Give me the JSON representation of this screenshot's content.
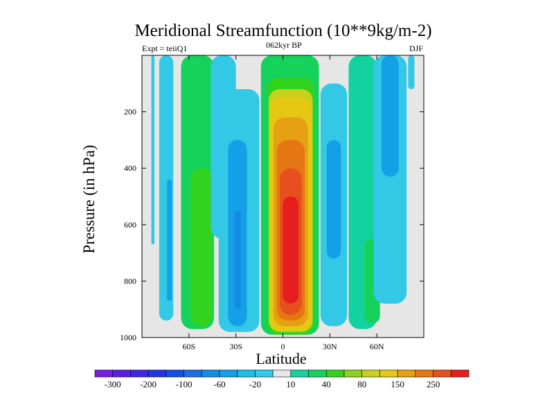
{
  "chart_data": {
    "type": "heatmap",
    "title": "Meridional Streamfunction (10**9kg/m-2)",
    "left_label": "Expt = teiiQ1",
    "center_label": "062kyr BP",
    "right_label": "DJF",
    "xlabel": "Latitude",
    "ylabel": "Pressure (in hPa)",
    "xlim": [
      -90,
      90
    ],
    "ylim": [
      0,
      1000
    ],
    "y_reversed": true,
    "grid": false,
    "legend_position": "bottom",
    "x_ticks": [
      {
        "value": -60,
        "label": "60S"
      },
      {
        "value": -30,
        "label": "30S"
      },
      {
        "value": 0,
        "label": "0"
      },
      {
        "value": 30,
        "label": "30N"
      },
      {
        "value": 60,
        "label": "60N"
      }
    ],
    "y_ticks": [
      {
        "value": 200,
        "label": "200"
      },
      {
        "value": 400,
        "label": "400"
      },
      {
        "value": 600,
        "label": "600"
      },
      {
        "value": 800,
        "label": "800"
      },
      {
        "value": 1000,
        "label": "1000"
      }
    ],
    "colorbar": {
      "levels": [
        -300,
        -250,
        -200,
        -150,
        -100,
        -80,
        -60,
        -40,
        -20,
        -10,
        10,
        20,
        40,
        60,
        80,
        100,
        150,
        200,
        250,
        300
      ],
      "labels": [
        {
          "value": "-300",
          "boundary": 1
        },
        {
          "value": "-200",
          "boundary": 3
        },
        {
          "value": "-100",
          "boundary": 5
        },
        {
          "value": "-60",
          "boundary": 7
        },
        {
          "value": "-20",
          "boundary": 9
        },
        {
          "value": "10",
          "boundary": 11
        },
        {
          "value": "40",
          "boundary": 13
        },
        {
          "value": "80",
          "boundary": 15
        },
        {
          "value": "150",
          "boundary": 17
        },
        {
          "value": "250",
          "boundary": 19
        }
      ],
      "colors": [
        "#7a1ee6",
        "#5a1ee6",
        "#3c28e6",
        "#2336e6",
        "#1450e6",
        "#1e6ee6",
        "#148ce6",
        "#14a0e6",
        "#1ebde6",
        "#32c8e6",
        "#e6e6e6",
        "#14d2a0",
        "#14d25a",
        "#32d21e",
        "#8cd21e",
        "#c8d21e",
        "#e6c814",
        "#e6a014",
        "#e67814",
        "#e6501e",
        "#e61e1e"
      ]
    },
    "field": {
      "note": "streamfunction values in 10**9 kg/m-2 by latitude (deg) and pressure (hPa)",
      "cells": [
        {
          "lat": [
            -84,
            -82
          ],
          "p": [
            0,
            670
          ],
          "value": -20
        },
        {
          "lat": [
            -79,
            -70
          ],
          "p": [
            0,
            940
          ],
          "value": -20
        },
        {
          "lat": [
            -74,
            -71
          ],
          "p": [
            440,
            870
          ],
          "value": -60
        },
        {
          "lat": [
            -65,
            -44
          ],
          "p": [
            0,
            970
          ],
          "value": 20
        },
        {
          "lat": [
            -59,
            -45
          ],
          "p": [
            400,
            960
          ],
          "value": 40
        },
        {
          "lat": [
            -46,
            -30
          ],
          "p": [
            0,
            650
          ],
          "value": -20
        },
        {
          "lat": [
            -41,
            -15
          ],
          "p": [
            120,
            980
          ],
          "value": -20
        },
        {
          "lat": [
            -35,
            -23
          ],
          "p": [
            300,
            960
          ],
          "value": -60
        },
        {
          "lat": [
            -31,
            -27
          ],
          "p": [
            550,
            900
          ],
          "value": -80
        },
        {
          "lat": [
            -14,
            23
          ],
          "p": [
            0,
            990
          ],
          "value": 20
        },
        {
          "lat": [
            -10,
            20
          ],
          "p": [
            80,
            990
          ],
          "value": 40
        },
        {
          "lat": [
            -9,
            19
          ],
          "p": [
            120,
            980
          ],
          "value": 80
        },
        {
          "lat": [
            -8,
            18
          ],
          "p": [
            150,
            975
          ],
          "value": 100
        },
        {
          "lat": [
            -6,
            16
          ],
          "p": [
            220,
            960
          ],
          "value": 150
        },
        {
          "lat": [
            -4,
            14
          ],
          "p": [
            300,
            940
          ],
          "value": 200
        },
        {
          "lat": [
            -2,
            12
          ],
          "p": [
            400,
            920
          ],
          "value": 250
        },
        {
          "lat": [
            0,
            10
          ],
          "p": [
            500,
            880
          ],
          "value": 300
        },
        {
          "lat": [
            24,
            41
          ],
          "p": [
            100,
            960
          ],
          "value": -20
        },
        {
          "lat": [
            28,
            37
          ],
          "p": [
            300,
            720
          ],
          "value": -60
        },
        {
          "lat": [
            42,
            60
          ],
          "p": [
            0,
            970
          ],
          "value": 10
        },
        {
          "lat": [
            52,
            62
          ],
          "p": [
            650,
            950
          ],
          "value": 20
        },
        {
          "lat": [
            58,
            79
          ],
          "p": [
            0,
            880
          ],
          "value": -20
        },
        {
          "lat": [
            63,
            74
          ],
          "p": [
            0,
            430
          ],
          "value": -60
        },
        {
          "lat": [
            80,
            84
          ],
          "p": [
            0,
            120
          ],
          "value": -20
        }
      ]
    }
  }
}
